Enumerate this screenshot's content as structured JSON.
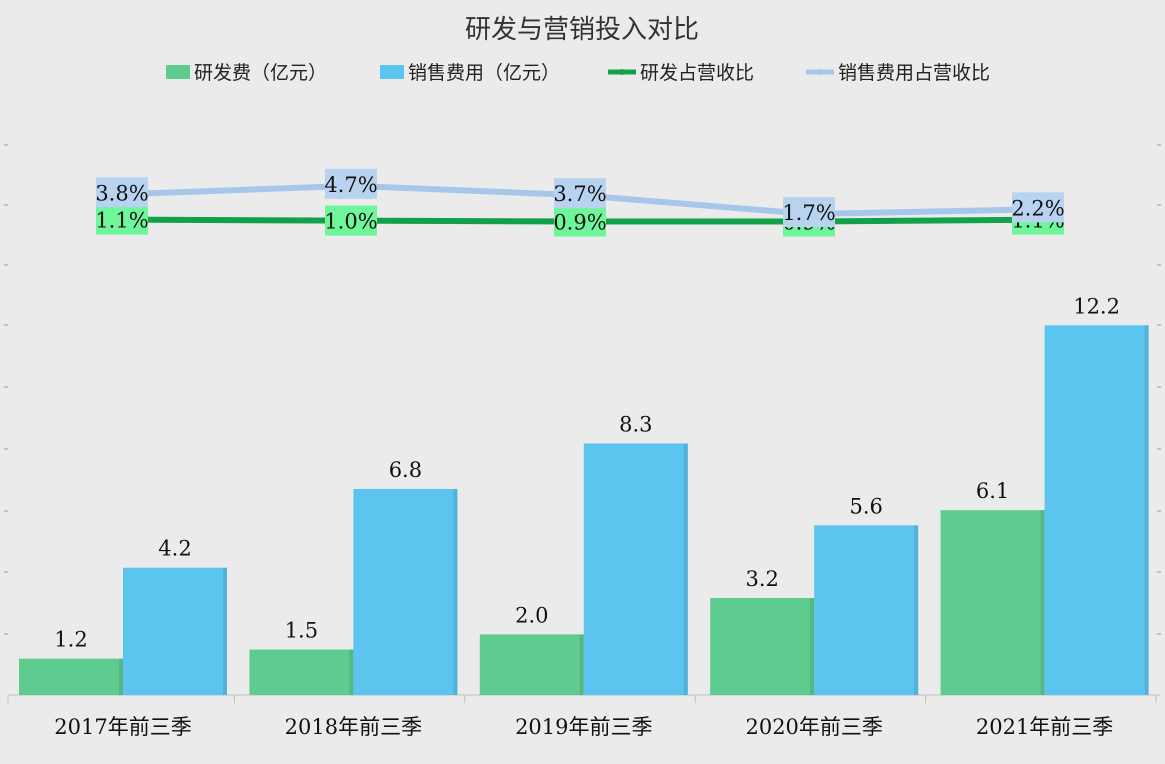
{
  "chart_data": {
    "type": "bar",
    "title": "研发与营销投入对比",
    "categories": [
      "2017年前三季",
      "2018年前三季",
      "2019年前三季",
      "2020年前三季",
      "2021年前三季"
    ],
    "series": [
      {
        "name": "研发费（亿元）",
        "type": "bar",
        "color": "#5ecb8f",
        "values": [
          1.2,
          1.5,
          2.0,
          3.2,
          6.1
        ],
        "labels": [
          "1.2",
          "1.5",
          "2.0",
          "3.2",
          "6.1"
        ]
      },
      {
        "name": "销售费用（亿元）",
        "type": "bar",
        "color": "#5bc4ef",
        "values": [
          4.2,
          6.8,
          8.3,
          5.6,
          12.2
        ],
        "labels": [
          "4.2",
          "6.8",
          "8.3",
          "5.6",
          "12.2"
        ]
      },
      {
        "name": "研发占营收比",
        "type": "line",
        "color": "#13a04a",
        "label_bg": "#6ff59a",
        "values": [
          1.1,
          1.0,
          0.9,
          0.9,
          1.1
        ],
        "labels": [
          "1.1%",
          "1.0%",
          "0.9%",
          "0.9%",
          "1.1%"
        ]
      },
      {
        "name": "销售费用占营收比",
        "type": "line",
        "color": "#a6c7ea",
        "label_bg": "#b8d3ef",
        "values": [
          3.8,
          4.7,
          3.7,
          1.7,
          2.2
        ],
        "labels": [
          "3.8%",
          "4.7%",
          "3.7%",
          "1.7%",
          "2.2%"
        ]
      }
    ],
    "legend_position": "top"
  }
}
